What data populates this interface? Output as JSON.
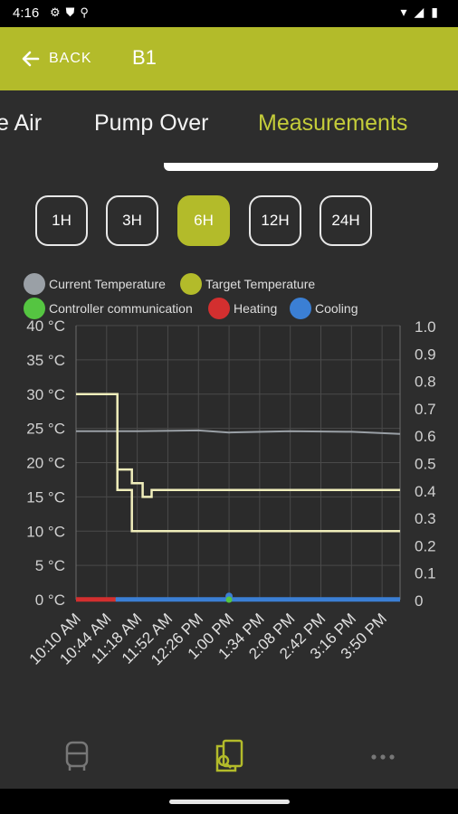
{
  "status_bar": {
    "time": "4:16",
    "icons": [
      "settings-icon",
      "shield-icon",
      "usb-icon",
      "wifi-icon",
      "signal-icon",
      "battery-icon"
    ]
  },
  "app_bar": {
    "back_label": "BACK",
    "title": "B1",
    "background": "#b3bb2a"
  },
  "tabs": [
    {
      "label": "e Air",
      "active": false
    },
    {
      "label": "Pump Over",
      "active": false
    },
    {
      "label": "Measurements",
      "active": true
    }
  ],
  "ranges": [
    {
      "label": "1H",
      "active": false
    },
    {
      "label": "3H",
      "active": false
    },
    {
      "label": "6H",
      "active": true
    },
    {
      "label": "12H",
      "active": false
    },
    {
      "label": "24H",
      "active": false
    }
  ],
  "legend": [
    {
      "label": "Current Temperature",
      "color": "#9aa0a6"
    },
    {
      "label": "Target Temperature",
      "color": "#b3bb2a"
    },
    {
      "label": "Controller communication",
      "color": "#55c541"
    },
    {
      "label": "Heating",
      "color": "#d32f2f"
    },
    {
      "label": "Cooling",
      "color": "#3b7fd4"
    }
  ],
  "chart_data": {
    "type": "line",
    "x_labels": [
      "10:10 AM",
      "10:44 AM",
      "11:18 AM",
      "11:52 AM",
      "12:26 PM",
      "1:00 PM",
      "1:34 PM",
      "2:08 PM",
      "2:42 PM",
      "3:16 PM",
      "3:50 PM"
    ],
    "x_start": "10:10 AM",
    "x_end": "4:10 PM",
    "left_axis": {
      "ticks": [
        "0 °C",
        "5 °C",
        "10 °C",
        "15 °C",
        "20 °C",
        "25 °C",
        "30 °C",
        "35 °C",
        "40 °C"
      ],
      "min": 0,
      "max": 40
    },
    "right_axis": {
      "ticks": [
        "0",
        "0.1",
        "0.2",
        "0.3",
        "0.4",
        "0.5",
        "0.6",
        "0.7",
        "0.8",
        "0.9",
        "1.0"
      ],
      "min": 0,
      "max": 1.0
    },
    "series": [
      {
        "name": "Current Temperature",
        "color": "#9aa0a6",
        "points": [
          [
            "10:10 AM",
            24.6
          ],
          [
            "11:18 AM",
            24.6
          ],
          [
            "12:26 PM",
            24.7
          ],
          [
            "1:00 PM",
            24.4
          ],
          [
            "2:08 PM",
            24.6
          ],
          [
            "3:16 PM",
            24.5
          ],
          [
            "4:10 PM",
            24.2
          ]
        ]
      },
      {
        "name": "Target Temperature A",
        "color": "#f0eebb",
        "points": [
          [
            "10:10 AM",
            30
          ],
          [
            "10:56 AM",
            30
          ],
          [
            "10:56 AM",
            16
          ],
          [
            "11:12 AM",
            16
          ],
          [
            "11:12 AM",
            10
          ],
          [
            "4:10 PM",
            10
          ]
        ]
      },
      {
        "name": "Target Temperature B",
        "color": "#f0eebb",
        "points": [
          [
            "10:56 AM",
            19
          ],
          [
            "11:12 AM",
            19
          ],
          [
            "11:12 AM",
            17
          ],
          [
            "11:24 AM",
            17
          ],
          [
            "11:24 AM",
            15
          ],
          [
            "11:34 AM",
            15
          ],
          [
            "11:34 AM",
            16
          ],
          [
            "4:10 PM",
            16
          ]
        ]
      },
      {
        "name": "Controller communication",
        "color": "#55c541",
        "points": [
          [
            "10:10 AM",
            0
          ],
          [
            "4:10 PM",
            0
          ]
        ]
      },
      {
        "name": "Heating",
        "color": "#d32f2f",
        "points": [
          [
            "10:10 AM",
            0.02
          ],
          [
            "10:54 AM",
            0.02
          ]
        ]
      },
      {
        "name": "Cooling",
        "color": "#3b7fd4",
        "points": [
          [
            "10:54 AM",
            0.02
          ],
          [
            "4:10 PM",
            0.02
          ]
        ]
      }
    ]
  },
  "bottom_nav": [
    {
      "icon": "tank-icon",
      "active": false
    },
    {
      "icon": "document-search-icon",
      "active": true
    },
    {
      "icon": "more-icon",
      "active": false
    }
  ]
}
